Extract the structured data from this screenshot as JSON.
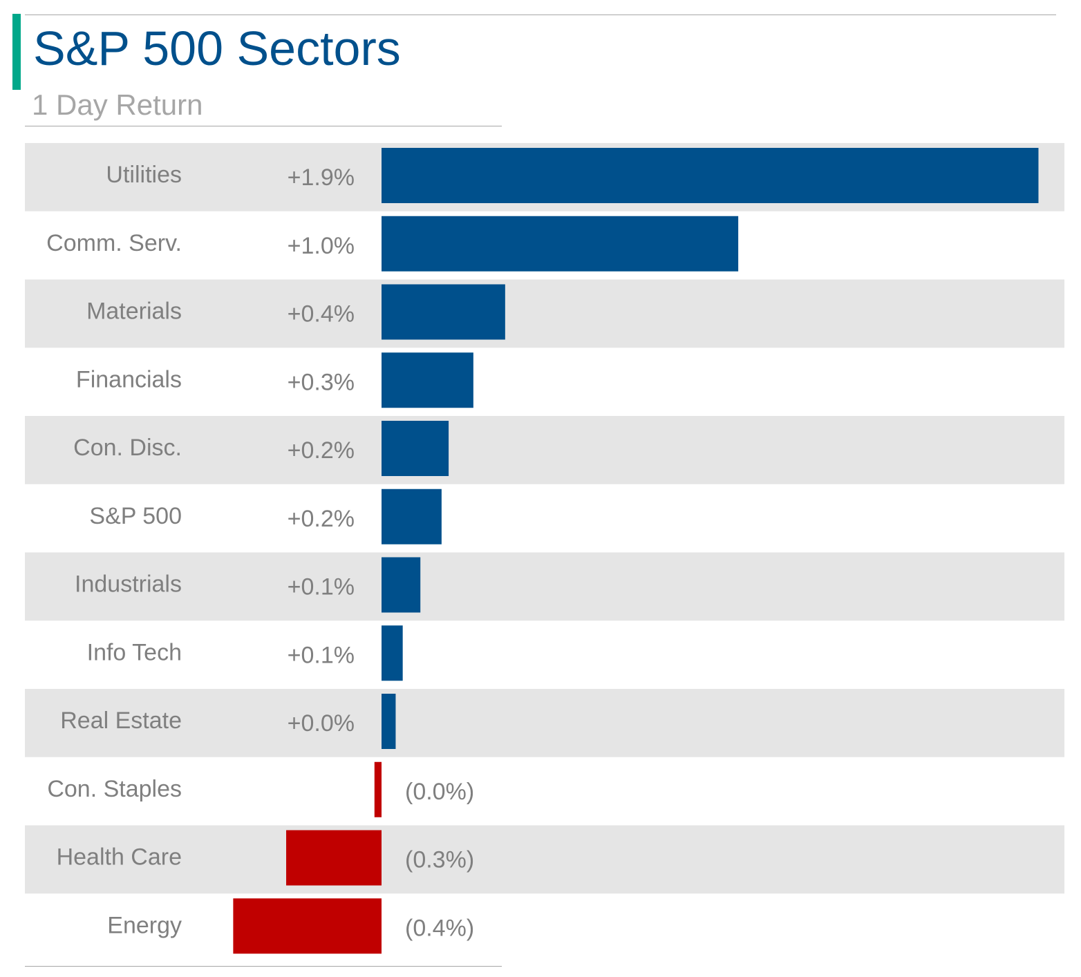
{
  "header": {
    "title": "S&P 500 Sectors",
    "subtitle": "1 Day Return"
  },
  "colors": {
    "positive": "#00508c",
    "negative": "#c00000",
    "band": "#e5e5e5",
    "label": "#7f7f7f",
    "accent": "#00a88a"
  },
  "chart_data": {
    "type": "bar",
    "orientation": "horizontal",
    "title": "S&P 500 Sectors",
    "subtitle": "1 Day Return",
    "unit": "%",
    "categories": [
      "Utilities",
      "Comm. Serv.",
      "Materials",
      "Financials",
      "Con. Disc.",
      "S&P 500",
      "Industrials",
      "Info Tech",
      "Real Estate",
      "Con. Staples",
      "Health Care",
      "Energy"
    ],
    "values": [
      1.86,
      1.01,
      0.35,
      0.26,
      0.19,
      0.17,
      0.11,
      0.06,
      0.04,
      -0.02,
      -0.27,
      -0.42
    ],
    "data_labels": [
      "+1.9%",
      "+1.0%",
      "+0.4%",
      "+0.3%",
      "+0.2%",
      "+0.2%",
      "+0.1%",
      "+0.1%",
      "+0.0%",
      "(0.0%)",
      "(0.3%)",
      "(0.4%)"
    ],
    "grid": false,
    "legend": "none"
  }
}
